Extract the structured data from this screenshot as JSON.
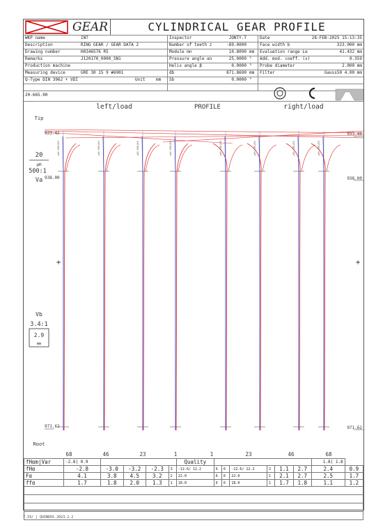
{
  "header": {
    "logo": "GEAR",
    "title": "CYLINDRICAL GEAR PROFILE"
  },
  "info": {
    "col1": [
      [
        "WKP name",
        "INT"
      ],
      [
        "Description",
        "RING GEAR / GEAR DATA 2"
      ],
      [
        "Drawing number",
        "H0346576 R5"
      ],
      [
        "Remarks",
        "J120170_0000_SN1"
      ],
      [
        "Production machine",
        ""
      ],
      [
        "Measuring device",
        "GRE 30 15  9 #6901"
      ]
    ],
    "col2": [
      [
        "Inspector",
        "JONTY.T",
        ""
      ],
      [
        "Number of teeth z",
        "-89.0000",
        ""
      ],
      [
        "Module mn",
        "10.8090",
        "mm"
      ],
      [
        "Pressure angle αn",
        "25.0000",
        "°"
      ],
      [
        "Helix angle β",
        "0.0000",
        "°"
      ],
      [
        "db",
        "871.8690",
        "mm"
      ],
      [
        "Sb",
        "0.0000",
        "°"
      ]
    ],
    "col3": [
      [
        "Date",
        "28-FEB-2025  15:13:35"
      ],
      [
        "Face width b",
        "323.000 mm"
      ],
      [
        "Evaluation range Lα",
        "41.432 mm"
      ],
      [
        "Add. mod. coeff.    (x)",
        "0.359"
      ],
      [
        "Probe diameter",
        "2.000 mm"
      ],
      [
        "Filter",
        "Gauss50  4.00 mm"
      ]
    ],
    "qtype_label": "Q-Type  DIN 3962 + VDI",
    "unit_label": "Unit",
    "unit_value": "mm"
  },
  "plot": {
    "scale_top": "20-665.00",
    "left_label": "left/load",
    "center_label": "PROFILE",
    "right_label": "right/load",
    "tip": "Tip",
    "root": "Root",
    "v_scale": "20",
    "v_unit": "µm",
    "mag": "500:1",
    "va": "Va",
    "vb": "Vb",
    "vb_mag": "3.4:1",
    "vb_scale": "2.9",
    "vb_unit": "mm",
    "y_top_left": "923.42",
    "y_top_right": "933.46",
    "y_mid_left": "938.00",
    "y_mid_right": "938.00",
    "y_bot_left": "971.62",
    "y_bot_right": "971.62",
    "teeth": [
      "68",
      "46",
      "23",
      "1",
      "1",
      "23",
      "46",
      "68"
    ]
  },
  "quality": {
    "header_left": "fHαm|Var",
    "var_val": "-2.8|  0.9",
    "quality_label": "Quality",
    "right_val": "1.8|  1.8",
    "rows": [
      {
        "name": "fHα",
        "v": [
          "-2.8",
          "-3.0",
          "-3.2",
          "-2.3"
        ],
        "m1": "3",
        "q1": "-12.6/ 12.2",
        "c1": [
          "6",
          "6"
        ],
        "q2": "-12.6/ 12.2",
        "m2": "2",
        "r": [
          "1.1",
          "2.7",
          "2.4",
          "0.9"
        ]
      },
      {
        "name": "Fα",
        "v": [
          "4.1",
          "3.8",
          "4.5",
          "3.2"
        ],
        "m1": "2",
        "q1": "22.0",
        "c1": [
          "6",
          "6"
        ],
        "q2": "22.0",
        "m2": "1",
        "r": [
          "2.1",
          "2.7",
          "2.5",
          "1.7"
        ]
      },
      {
        "name": "ffα",
        "v": [
          "1.7",
          "1.8",
          "2.0",
          "1.3"
        ],
        "m1": "1",
        "q1": "18.0",
        "c1": [
          "6",
          "6"
        ],
        "q2": "18.0",
        "m2": "1",
        "r": [
          "1.7",
          "1.8",
          "1.1",
          "1.2"
        ]
      }
    ]
  },
  "footer": "7.33/ | QUINDOS 2023.2.2"
}
